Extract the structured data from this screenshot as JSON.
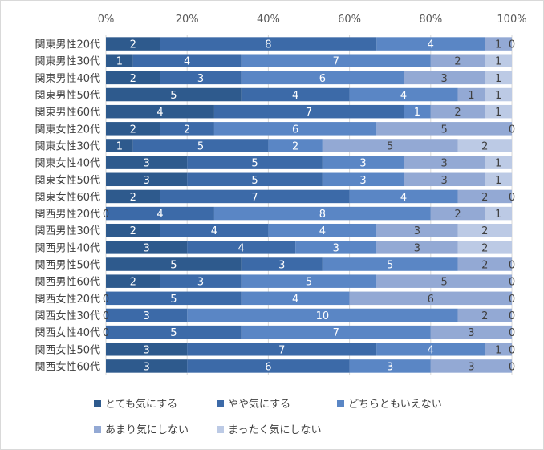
{
  "chart_data": {
    "type": "bar",
    "orientation": "horizontal",
    "stacked": "percent",
    "xlim": [
      0,
      100
    ],
    "xticks": [
      "0%",
      "20%",
      "40%",
      "60%",
      "80%",
      "100%"
    ],
    "grid": true,
    "legend_position": "bottom",
    "categories": [
      "関東男性20代",
      "関東男性30代",
      "関東男性40代",
      "関東男性50代",
      "関東男性60代",
      "関東女性20代",
      "関東女性30代",
      "関東女性40代",
      "関東女性50代",
      "関東女性60代",
      "関西男性20代",
      "関西男性30代",
      "関西男性40代",
      "関西男性50代",
      "関西男性60代",
      "関西女性20代",
      "関西女性30代",
      "関西女性40代",
      "関西女性50代",
      "関西女性60代"
    ],
    "series": [
      {
        "name": "とても気にする",
        "color": "#2e5a8d",
        "label_color": "#ffffff",
        "values": [
          2,
          1,
          2,
          5,
          4,
          2,
          1,
          3,
          3,
          2,
          0,
          2,
          3,
          5,
          2,
          0,
          0,
          0,
          3,
          3
        ]
      },
      {
        "name": "やや気にする",
        "color": "#3c6aa8",
        "label_color": "#ffffff",
        "values": [
          8,
          4,
          3,
          4,
          7,
          2,
          5,
          5,
          5,
          7,
          4,
          4,
          4,
          3,
          3,
          5,
          3,
          5,
          7,
          6
        ]
      },
      {
        "name": "どちらともいえない",
        "color": "#5a86c5",
        "label_color": "#ffffff",
        "values": [
          4,
          7,
          6,
          4,
          1,
          6,
          2,
          3,
          3,
          4,
          8,
          4,
          3,
          5,
          5,
          4,
          10,
          7,
          4,
          3
        ]
      },
      {
        "name": "あまり気にしない",
        "color": "#93a9d4",
        "label_color": "#404040",
        "values": [
          1,
          2,
          3,
          1,
          2,
          5,
          5,
          3,
          3,
          2,
          2,
          3,
          3,
          2,
          5,
          6,
          2,
          3,
          1,
          3
        ]
      },
      {
        "name": "まったく気にしない",
        "color": "#bccae5",
        "label_color": "#404040",
        "values": [
          0,
          1,
          1,
          1,
          1,
          0,
          2,
          1,
          1,
          0,
          1,
          2,
          2,
          0,
          0,
          0,
          0,
          0,
          0,
          0
        ]
      }
    ]
  }
}
